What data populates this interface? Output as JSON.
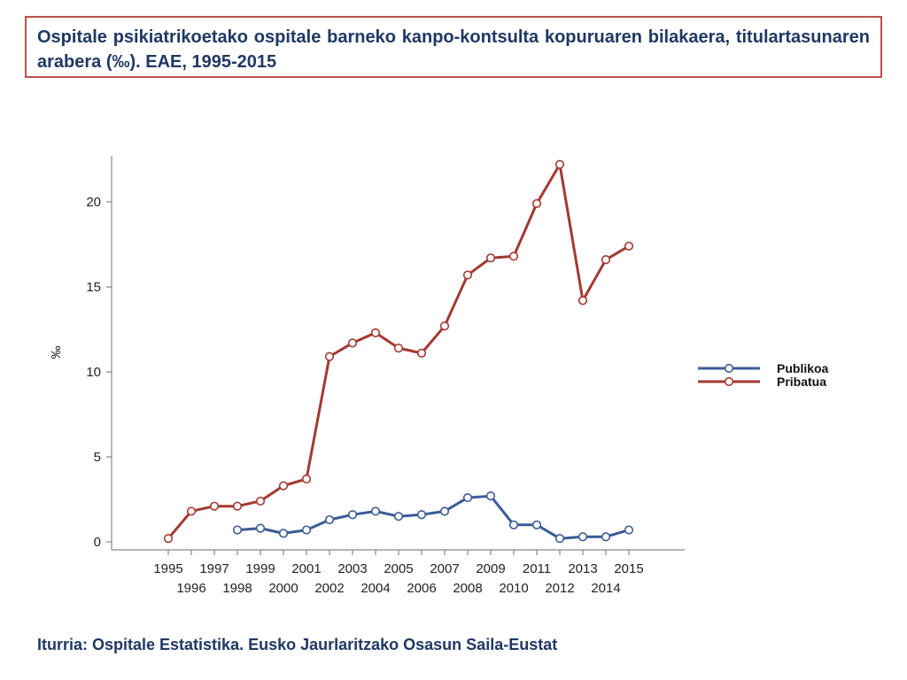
{
  "title": "Ospitale psikiatrikoetako ospitale barneko kanpo-kontsulta kopuruaren bilakaera, titulartasunaren arabera (‰). EAE, 1995-2015",
  "source": "Iturria: Ospitale Estatistika. Eusko Jaurlaritzako Osasun Saila-Eustat",
  "chart_data": {
    "type": "line",
    "title": "",
    "xlabel": "",
    "ylabel": "‰",
    "ylim": [
      0,
      22.8
    ],
    "xlim": [
      1995,
      2015
    ],
    "yticks": [
      0,
      5,
      10,
      15,
      20
    ],
    "xticks": [
      1995,
      1996,
      1997,
      1998,
      1999,
      2000,
      2001,
      2002,
      2003,
      2004,
      2005,
      2006,
      2007,
      2008,
      2009,
      2010,
      2011,
      2012,
      2013,
      2014,
      2015
    ],
    "grid": false,
    "legend_position": "right",
    "series": [
      {
        "name": "Publikoa",
        "color": "#3c5a96",
        "x": [
          1998,
          1999,
          2000,
          2001,
          2002,
          2003,
          2004,
          2005,
          2006,
          2007,
          2008,
          2009,
          2010,
          2011,
          2012,
          2013,
          2014,
          2015
        ],
        "values": [
          0.7,
          0.8,
          0.5,
          0.7,
          1.3,
          1.6,
          1.8,
          1.5,
          1.6,
          1.8,
          2.6,
          2.7,
          1.0,
          1.0,
          0.2,
          0.3,
          0.3,
          0.7
        ]
      },
      {
        "name": "Pribatua",
        "color": "#a33a32",
        "x": [
          1995,
          1996,
          1997,
          1998,
          1999,
          2000,
          2001,
          2002,
          2003,
          2004,
          2005,
          2006,
          2007,
          2008,
          2009,
          2010,
          2011,
          2012,
          2013,
          2014,
          2015
        ],
        "values": [
          0.2,
          1.8,
          2.1,
          2.1,
          2.4,
          3.3,
          3.7,
          10.9,
          11.7,
          12.3,
          11.4,
          11.1,
          12.7,
          15.7,
          16.7,
          16.8,
          19.9,
          22.2,
          14.2,
          16.6,
          17.4
        ]
      }
    ]
  }
}
